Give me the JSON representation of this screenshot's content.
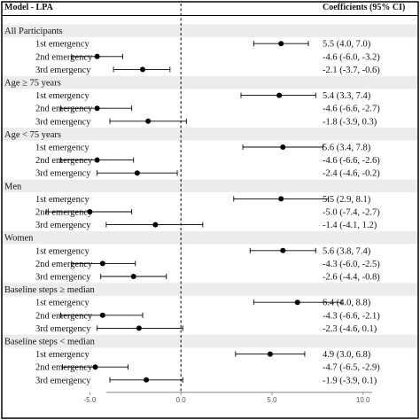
{
  "header": {
    "model_label": "Model - LPA",
    "coef_label": "Coefficients (95% CI)"
  },
  "colors": {
    "band": "#ececec",
    "point": "#000000",
    "line": "#000000",
    "zero_line": "#000000",
    "frame": "#000000"
  },
  "chart_data": {
    "type": "forest",
    "xlim": [
      -7.5,
      10.5
    ],
    "ticks": [
      -5.0,
      0.0,
      5.0,
      10.0
    ],
    "tick_labels": [
      "-5.0",
      "0.0",
      "5.0",
      "10.0"
    ],
    "reference_line": 0,
    "groups": [
      {
        "label": "All Participants",
        "rows": [
          {
            "label": "1st emergency",
            "est": 5.5,
            "lo": 4.0,
            "hi": 7.0,
            "ci_text": "5.5 (4.0, 7.0)"
          },
          {
            "label": "2nd emergency",
            "est": -4.6,
            "lo": -6.0,
            "hi": -3.2,
            "ci_text": "-4.6 (-6.0, -3.2)"
          },
          {
            "label": "3rd emergency",
            "est": -2.1,
            "lo": -3.7,
            "hi": -0.6,
            "ci_text": "-2.1 (-3.7, -0.6)"
          }
        ]
      },
      {
        "label": "Age ≥ 75 years",
        "rows": [
          {
            "label": "1st emergency",
            "est": 5.4,
            "lo": 3.3,
            "hi": 7.4,
            "ci_text": "5.4 (3.3, 7.4)"
          },
          {
            "label": "2nd emergency",
            "est": -4.6,
            "lo": -6.6,
            "hi": -2.7,
            "ci_text": "-4.6 (-6.6, -2.7)"
          },
          {
            "label": "3rd emergency",
            "est": -1.8,
            "lo": -3.9,
            "hi": 0.3,
            "ci_text": "-1.8 (-3.9, 0.3)"
          }
        ]
      },
      {
        "label": "Age < 75 years",
        "rows": [
          {
            "label": "1st emergency",
            "est": 5.6,
            "lo": 3.4,
            "hi": 7.8,
            "ci_text": "5.6 (3.4, 7.8)"
          },
          {
            "label": "2nd emergency",
            "est": -4.6,
            "lo": -6.6,
            "hi": -2.6,
            "ci_text": "-4.6 (-6.6, -2.6)"
          },
          {
            "label": "3rd emergency",
            "est": -2.4,
            "lo": -4.6,
            "hi": -0.2,
            "ci_text": "-2.4 (-4.6, -0.2)"
          }
        ]
      },
      {
        "label": "Men",
        "rows": [
          {
            "label": "1st emergency",
            "est": 5.5,
            "lo": 2.9,
            "hi": 8.1,
            "ci_text": "5.5 (2.9, 8.1)"
          },
          {
            "label": "2nd emergency",
            "est": -5.0,
            "lo": -7.4,
            "hi": -2.7,
            "ci_text": "-5.0 (-7.4, -2.7)"
          },
          {
            "label": "3rd emergency",
            "est": -1.4,
            "lo": -4.1,
            "hi": 1.2,
            "ci_text": "-1.4 (-4.1, 1.2)"
          }
        ]
      },
      {
        "label": "Women",
        "rows": [
          {
            "label": "1st emergency",
            "est": 5.6,
            "lo": 3.8,
            "hi": 7.4,
            "ci_text": "5.6 (3.8, 7.4)"
          },
          {
            "label": "2nd emergency",
            "est": -4.3,
            "lo": -6.0,
            "hi": -2.5,
            "ci_text": "-4.3 (-6.0, -2.5)"
          },
          {
            "label": "3rd emergency",
            "est": -2.6,
            "lo": -4.4,
            "hi": -0.8,
            "ci_text": "-2.6 (-4.4, -0.8)"
          }
        ]
      },
      {
        "label": "Baseline steps ≥ median",
        "rows": [
          {
            "label": "1st emergency",
            "est": 6.4,
            "lo": 4.0,
            "hi": 8.8,
            "ci_text": "6.4 (4.0, 8.8)"
          },
          {
            "label": "2nd emergency",
            "est": -4.3,
            "lo": -6.6,
            "hi": -2.1,
            "ci_text": "-4.3 (-6.6, -2.1)"
          },
          {
            "label": "3rd emergency",
            "est": -2.3,
            "lo": -4.6,
            "hi": 0.1,
            "ci_text": "-2.3 (-4.6, 0.1)"
          }
        ]
      },
      {
        "label": "Baseline steps < median",
        "rows": [
          {
            "label": "1st emergency",
            "est": 4.9,
            "lo": 3.0,
            "hi": 6.8,
            "ci_text": "4.9 (3.0, 6.8)"
          },
          {
            "label": "2nd emergency",
            "est": -4.7,
            "lo": -6.5,
            "hi": -2.9,
            "ci_text": "-4.7 (-6.5, -2.9)"
          },
          {
            "label": "3rd emergency",
            "est": -1.9,
            "lo": -3.9,
            "hi": 0.1,
            "ci_text": "-1.9 (-3.9, 0.1)"
          }
        ]
      }
    ]
  }
}
